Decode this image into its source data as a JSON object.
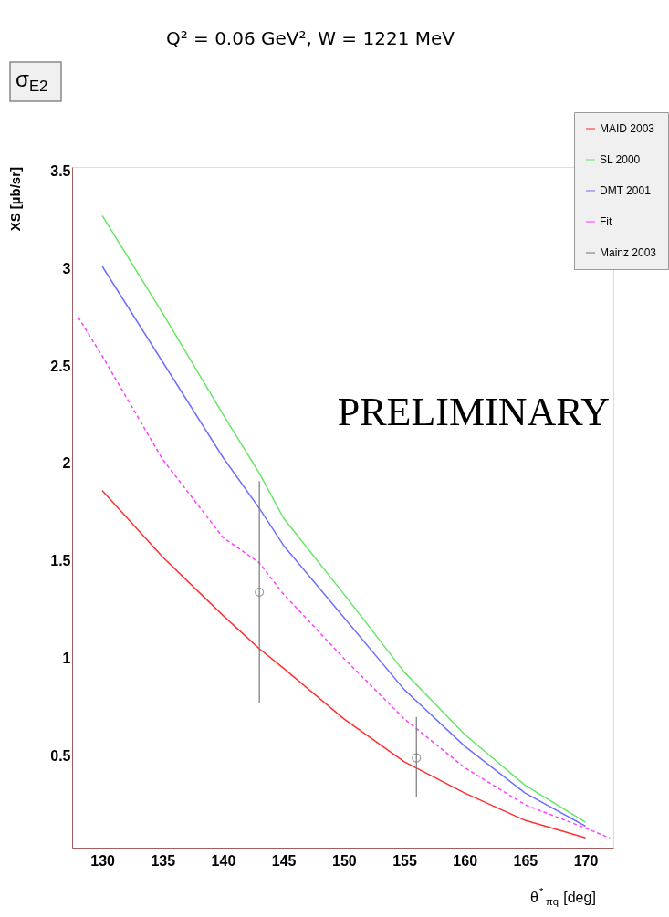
{
  "chart_data": {
    "type": "line",
    "title": "Q² = 0.06 GeV², W = 1221 MeV",
    "xlabel": "θ$^{*}$$_{πq}$ [deg]",
    "ylabel": "XS [µb/sr]",
    "annotations": [
      "σ$_{E2}$",
      "PRELIMINARY"
    ],
    "xlim": [
      127.5,
      172.3
    ],
    "ylim": [
      0.03,
      3.52
    ],
    "xticks": [
      130,
      135,
      140,
      145,
      150,
      155,
      160,
      165,
      170
    ],
    "yticks": [
      0.5,
      1,
      1.5,
      2,
      2.5,
      3,
      3.5
    ],
    "grid": false,
    "legend": "top right",
    "series": [
      {
        "name": "MAID 2003",
        "type": "line",
        "color": "#ff3030",
        "line_style": "solid",
        "x": [
          130,
          135,
          140,
          143,
          145,
          150,
          155,
          160,
          165,
          170
        ],
        "values": [
          1.86,
          1.52,
          1.22,
          1.05,
          0.95,
          0.69,
          0.47,
          0.31,
          0.17,
          0.08
        ]
      },
      {
        "name": "SL 2000",
        "type": "line",
        "color": "#66e666",
        "line_style": "solid",
        "x": [
          130,
          135,
          140,
          143,
          145,
          150,
          155,
          160,
          165,
          170
        ],
        "values": [
          3.27,
          2.77,
          2.25,
          1.95,
          1.72,
          1.33,
          0.93,
          0.61,
          0.35,
          0.16
        ]
      },
      {
        "name": "DMT 2001",
        "type": "line",
        "color": "#7070ff",
        "line_style": "solid",
        "x": [
          130,
          135,
          140,
          143,
          145,
          150,
          155,
          160,
          165,
          170
        ],
        "values": [
          3.01,
          2.52,
          2.03,
          1.77,
          1.58,
          1.21,
          0.84,
          0.55,
          0.31,
          0.14
        ]
      },
      {
        "name": "Fit",
        "type": "line",
        "color": "#ff40ff",
        "line_style": "dashed",
        "x": [
          128,
          130,
          135,
          140,
          143,
          145,
          150,
          155,
          160,
          165,
          170,
          172
        ],
        "values": [
          2.75,
          2.55,
          2.02,
          1.62,
          1.49,
          1.33,
          1.0,
          0.69,
          0.44,
          0.25,
          0.13,
          0.08
        ]
      },
      {
        "name": "Mainz 2003",
        "type": "scatter",
        "color": "#777777",
        "marker": "circle",
        "x": [
          143,
          156
        ],
        "values": [
          1.34,
          0.49
        ],
        "errors": [
          [
            0.77,
            1.91
          ],
          [
            0.29,
            0.7
          ]
        ]
      }
    ]
  }
}
